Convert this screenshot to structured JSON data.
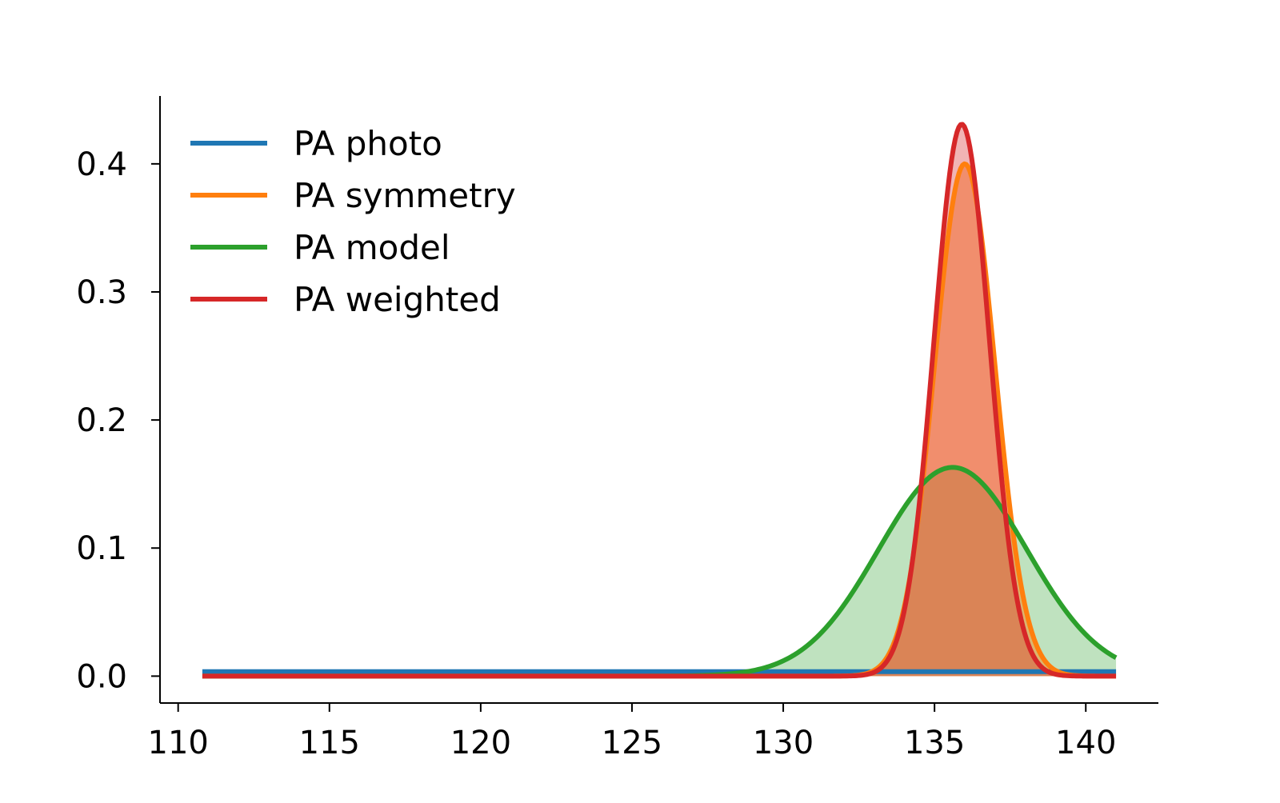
{
  "chart_data": {
    "type": "area",
    "title": "",
    "xlabel": "",
    "ylabel": "",
    "xlim": [
      109.4,
      142.4
    ],
    "ylim": [
      -0.021,
      0.453
    ],
    "x_ticks": [
      110,
      115,
      120,
      125,
      130,
      135,
      140
    ],
    "x_tick_labels": [
      "110",
      "115",
      "120",
      "125",
      "130",
      "135",
      "140"
    ],
    "y_ticks": [
      0.0,
      0.1,
      0.2,
      0.3,
      0.4
    ],
    "y_tick_labels": [
      "0.0",
      "0.1",
      "0.2",
      "0.3",
      "0.4"
    ],
    "x_range": [
      110.8,
      141.0
    ],
    "grid": false,
    "legend_position": "upper-left",
    "spines": [
      "left",
      "bottom"
    ],
    "series": [
      {
        "name": "PA photo",
        "color": "#1f77b4",
        "distribution": "uniform",
        "value": 0.0035,
        "filled": false
      },
      {
        "name": "PA symmetry",
        "color": "#ff7f0e",
        "distribution": "gaussian",
        "mean": 136.0,
        "sigma": 1.0,
        "peak": 0.4,
        "filled": true
      },
      {
        "name": "PA model",
        "color": "#2ca02c",
        "distribution": "gaussian",
        "mean": 135.6,
        "sigma": 2.45,
        "peak": 0.163,
        "filled": true
      },
      {
        "name": "PA weighted",
        "color": "#d62728",
        "distribution": "gaussian",
        "mean": 135.9,
        "sigma": 0.92,
        "peak": 0.431,
        "filled": true
      }
    ]
  }
}
